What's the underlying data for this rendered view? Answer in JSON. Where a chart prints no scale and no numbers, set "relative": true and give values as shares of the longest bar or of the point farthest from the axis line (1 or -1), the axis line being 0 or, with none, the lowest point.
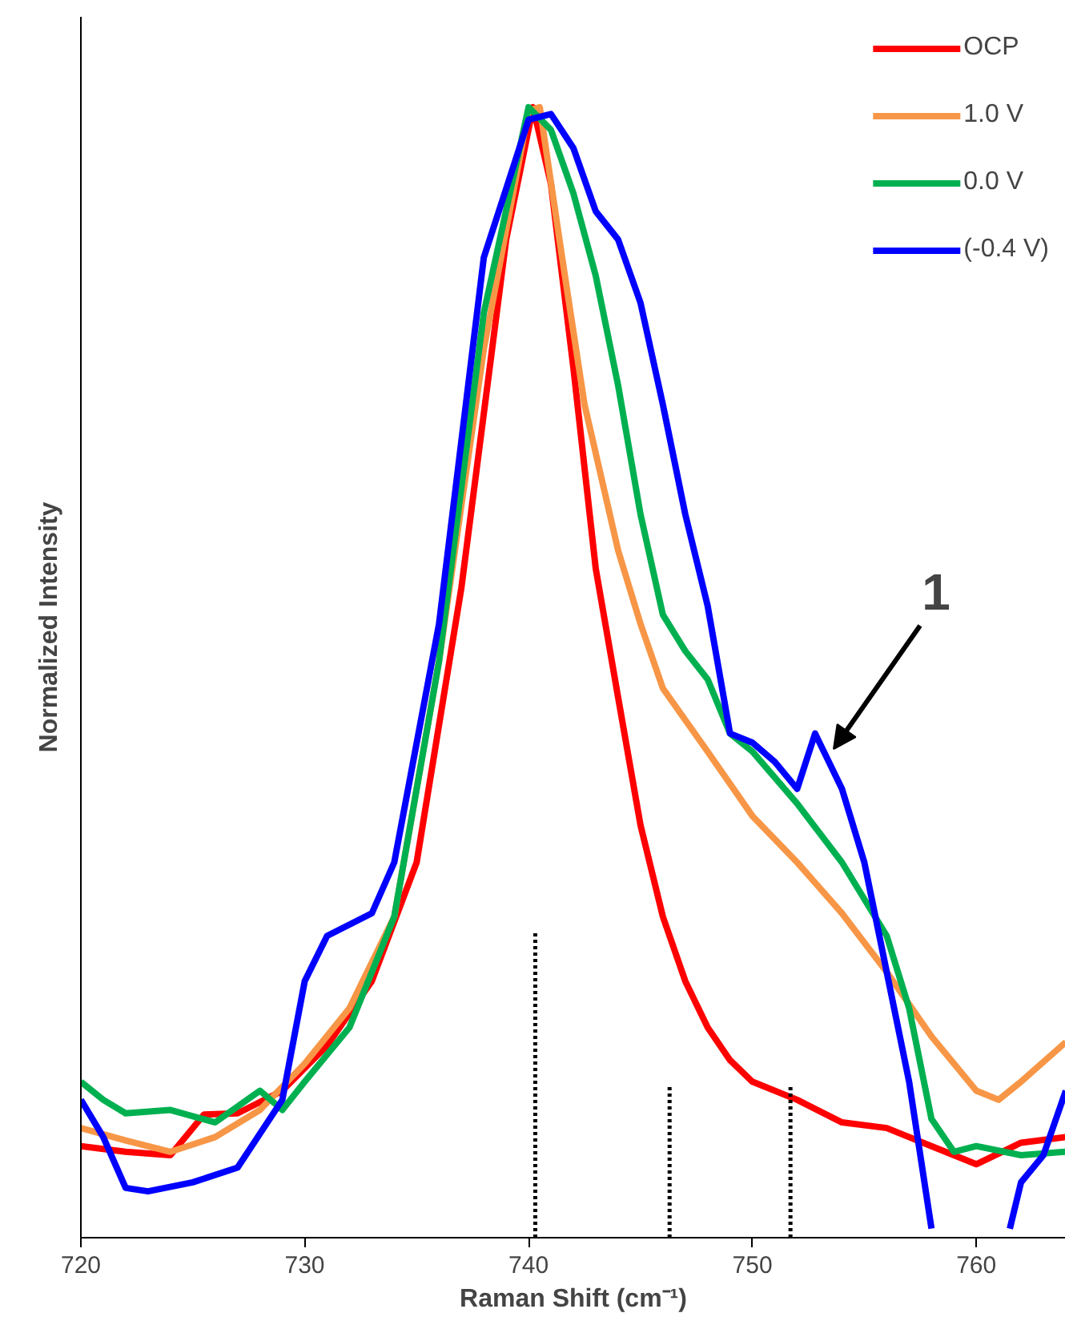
{
  "chart_data": {
    "type": "line",
    "relative": true,
    "xlabel": "Raman Shift (cm⁻¹)",
    "ylabel": "Normalized Intensity",
    "xlim": [
      720,
      764
    ],
    "xticks": [
      720,
      730,
      740,
      750,
      760
    ],
    "grid": false,
    "legend": "top right",
    "line_style": "solid",
    "marker": "none",
    "annotations": [
      "1"
    ],
    "series": [
      {
        "name": "OCP",
        "color": "#ff0000",
        "x": [
          720,
          722,
          724,
          725.5,
          727,
          729,
          731,
          733,
          735,
          737,
          739,
          740.2,
          741,
          742,
          743,
          744,
          745,
          746,
          747,
          748,
          749,
          750,
          752,
          754,
          756,
          758,
          760,
          762,
          764
        ],
        "values": [
          0.081,
          0.076,
          0.073,
          0.109,
          0.11,
          0.13,
          0.17,
          0.227,
          0.332,
          0.575,
          0.883,
          1.0,
          0.932,
          0.77,
          0.592,
          0.478,
          0.365,
          0.284,
          0.227,
          0.186,
          0.157,
          0.138,
          0.122,
          0.102,
          0.097,
          0.081,
          0.065,
          0.084,
          0.089
        ]
      },
      {
        "name": "1.0 V",
        "color": "#f79646",
        "x": [
          720,
          722,
          724,
          726,
          728,
          730,
          732,
          734,
          736,
          738,
          740,
          740.5,
          741.5,
          742.5,
          744,
          745,
          746,
          748,
          750,
          752,
          754,
          756,
          758,
          760,
          761,
          762,
          764
        ],
        "values": [
          0.097,
          0.086,
          0.076,
          0.089,
          0.113,
          0.154,
          0.203,
          0.284,
          0.51,
          0.786,
          0.997,
          1.0,
          0.867,
          0.737,
          0.608,
          0.543,
          0.486,
          0.43,
          0.373,
          0.332,
          0.287,
          0.235,
          0.178,
          0.13,
          0.122,
          0.138,
          0.173
        ]
      },
      {
        "name": "0.0 V",
        "color": "#00b050",
        "x": [
          720,
          721,
          722,
          724,
          726,
          728,
          729,
          730,
          732,
          734,
          736,
          738,
          740,
          741,
          742,
          743,
          744,
          745,
          746,
          747,
          748,
          749,
          750,
          752,
          754,
          756,
          757,
          758,
          759,
          760,
          762,
          764
        ],
        "values": [
          0.138,
          0.122,
          0.11,
          0.113,
          0.102,
          0.13,
          0.113,
          0.138,
          0.186,
          0.284,
          0.51,
          0.818,
          1.0,
          0.98,
          0.924,
          0.851,
          0.754,
          0.64,
          0.551,
          0.519,
          0.494,
          0.446,
          0.43,
          0.384,
          0.332,
          0.267,
          0.203,
          0.105,
          0.076,
          0.081,
          0.073,
          0.076
        ]
      },
      {
        "name": "(-0.4 V)",
        "color": "#0000ff",
        "x": [
          720,
          721,
          722,
          723,
          725,
          727,
          729,
          730,
          731,
          733,
          734,
          736,
          738,
          740,
          741,
          742,
          743,
          744,
          745,
          746,
          747,
          748,
          749,
          750,
          751,
          752,
          752.8,
          754,
          755,
          756,
          757,
          758,
          758.5,
          761,
          761.5,
          762,
          763,
          764
        ],
        "values": [
          0.122,
          0.089,
          0.044,
          0.041,
          0.049,
          0.062,
          0.122,
          0.227,
          0.267,
          0.287,
          0.332,
          0.543,
          0.867,
          0.989,
          0.994,
          0.964,
          0.908,
          0.883,
          0.827,
          0.737,
          0.64,
          0.559,
          0.446,
          0.438,
          0.421,
          0.397,
          0.446,
          0.397,
          0.332,
          0.235,
          0.138,
          0.008,
          null,
          null,
          0.008,
          0.049,
          0.073,
          0.13
        ]
      },
      {
        "color": "#000000",
        "line_style": "dotted",
        "x": [
          740.3,
          740.3
        ],
        "values": [
          0,
          0.27
        ]
      },
      {
        "color": "#000000",
        "line_style": "dotted",
        "x": [
          746.3,
          746.3
        ],
        "values": [
          0,
          0.134
        ]
      },
      {
        "color": "#000000",
        "line_style": "dotted",
        "x": [
          751.7,
          751.7
        ],
        "values": [
          0,
          0.134
        ]
      }
    ]
  }
}
